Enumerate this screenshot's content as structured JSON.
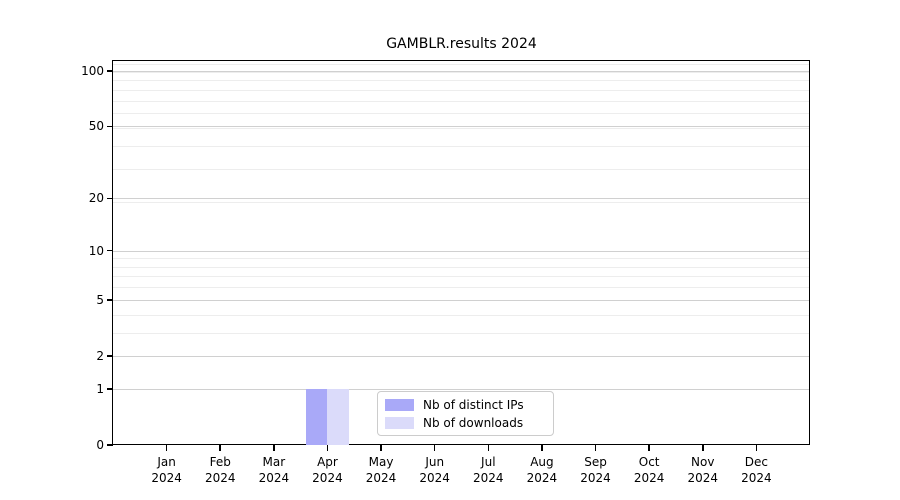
{
  "figure": {
    "background": "#ffffff"
  },
  "chart_data": {
    "type": "bar",
    "title": "GAMBLR.results 2024",
    "categories": [
      "Jan",
      "Feb",
      "Mar",
      "Apr",
      "May",
      "Jun",
      "Jul",
      "Aug",
      "Sep",
      "Oct",
      "Nov",
      "Dec"
    ],
    "category_year": "2024",
    "series": [
      {
        "name": "Nb of distinct IPs",
        "color": "#a9a9f8",
        "values": [
          0,
          0,
          0,
          1,
          0,
          0,
          0,
          0,
          0,
          0,
          0,
          0
        ]
      },
      {
        "name": "Nb of downloads",
        "color": "#dbdbfa",
        "values": [
          0,
          0,
          0,
          1,
          0,
          0,
          0,
          0,
          0,
          0,
          0,
          0
        ]
      }
    ],
    "y_axis": {
      "scale": "log10(1+y)",
      "ticks": [
        0,
        1,
        2,
        5,
        10,
        20,
        50,
        100
      ],
      "minor_gridlines": [
        3,
        4,
        6,
        7,
        8,
        9,
        19,
        29,
        39,
        49,
        59,
        69,
        79,
        89,
        99,
        109
      ],
      "ylim": [
        0,
        113.3
      ]
    },
    "xlabel": "",
    "ylabel": "",
    "grid": {
      "major_color": "#d0d0d0",
      "minor_color": "#ededed"
    },
    "legend_position": "inside-bottom-center"
  }
}
